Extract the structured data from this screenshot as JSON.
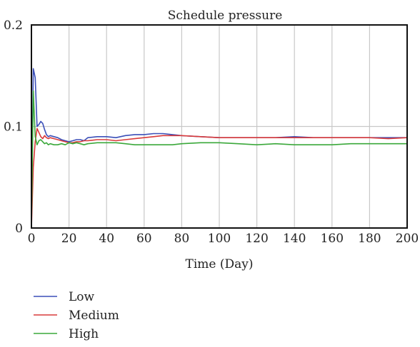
{
  "chart_data": {
    "type": "line",
    "title": "Schedule pressure",
    "xlabel": "Time (Day)",
    "ylabel": "",
    "xlim": [
      0,
      200
    ],
    "ylim": [
      0,
      0.2
    ],
    "x_ticks": [
      0,
      20,
      40,
      60,
      80,
      100,
      120,
      140,
      160,
      180,
      200
    ],
    "y_ticks": [
      0,
      0.1,
      0.2
    ],
    "x_tick_labels": [
      "0",
      "20",
      "40",
      "60",
      "80",
      "100",
      "120",
      "140",
      "160",
      "180",
      "200"
    ],
    "y_tick_labels": [
      "0",
      "0.1",
      "0.2"
    ],
    "grid": true,
    "legend_position": "bottom-left",
    "series": [
      {
        "name": "Low",
        "color": "#3b4fb8",
        "x": [
          0,
          1,
          2,
          3,
          4,
          5,
          6,
          7,
          8,
          9,
          10,
          12,
          14,
          16,
          18,
          20,
          22,
          24,
          26,
          28,
          30,
          35,
          40,
          45,
          50,
          55,
          60,
          65,
          70,
          75,
          80,
          90,
          100,
          110,
          120,
          130,
          140,
          150,
          160,
          170,
          180,
          190,
          200
        ],
        "y": [
          0.0,
          0.157,
          0.148,
          0.1,
          0.102,
          0.105,
          0.103,
          0.097,
          0.092,
          0.09,
          0.091,
          0.09,
          0.089,
          0.087,
          0.086,
          0.085,
          0.086,
          0.087,
          0.087,
          0.086,
          0.089,
          0.09,
          0.09,
          0.089,
          0.091,
          0.092,
          0.092,
          0.093,
          0.093,
          0.092,
          0.091,
          0.09,
          0.089,
          0.089,
          0.089,
          0.089,
          0.09,
          0.089,
          0.089,
          0.089,
          0.089,
          0.089,
          0.089
        ]
      },
      {
        "name": "Medium",
        "color": "#d93a3a",
        "x": [
          0,
          1,
          2,
          3,
          4,
          5,
          6,
          7,
          8,
          9,
          10,
          12,
          14,
          16,
          18,
          20,
          22,
          24,
          26,
          28,
          30,
          35,
          40,
          45,
          50,
          55,
          60,
          65,
          70,
          75,
          80,
          90,
          100,
          110,
          120,
          130,
          140,
          150,
          160,
          170,
          180,
          190,
          200
        ],
        "y": [
          0.0,
          0.06,
          0.085,
          0.098,
          0.094,
          0.09,
          0.088,
          0.091,
          0.089,
          0.088,
          0.089,
          0.088,
          0.087,
          0.086,
          0.085,
          0.084,
          0.084,
          0.085,
          0.085,
          0.086,
          0.086,
          0.087,
          0.087,
          0.086,
          0.087,
          0.088,
          0.089,
          0.09,
          0.091,
          0.091,
          0.091,
          0.09,
          0.089,
          0.089,
          0.089,
          0.089,
          0.089,
          0.089,
          0.089,
          0.089,
          0.089,
          0.088,
          0.089
        ]
      },
      {
        "name": "High",
        "color": "#3aa83a",
        "x": [
          0,
          1,
          2,
          3,
          4,
          5,
          6,
          7,
          8,
          9,
          10,
          12,
          14,
          16,
          18,
          20,
          22,
          24,
          26,
          28,
          30,
          35,
          40,
          45,
          50,
          55,
          60,
          65,
          70,
          75,
          80,
          90,
          100,
          110,
          120,
          130,
          140,
          150,
          160,
          170,
          180,
          190,
          200
        ],
        "y": [
          0.0,
          0.135,
          0.09,
          0.082,
          0.086,
          0.087,
          0.085,
          0.083,
          0.084,
          0.082,
          0.083,
          0.082,
          0.082,
          0.083,
          0.082,
          0.084,
          0.083,
          0.084,
          0.083,
          0.082,
          0.083,
          0.084,
          0.084,
          0.084,
          0.083,
          0.082,
          0.082,
          0.082,
          0.082,
          0.082,
          0.083,
          0.084,
          0.084,
          0.083,
          0.082,
          0.083,
          0.082,
          0.082,
          0.082,
          0.083,
          0.083,
          0.083,
          0.083
        ]
      }
    ]
  }
}
